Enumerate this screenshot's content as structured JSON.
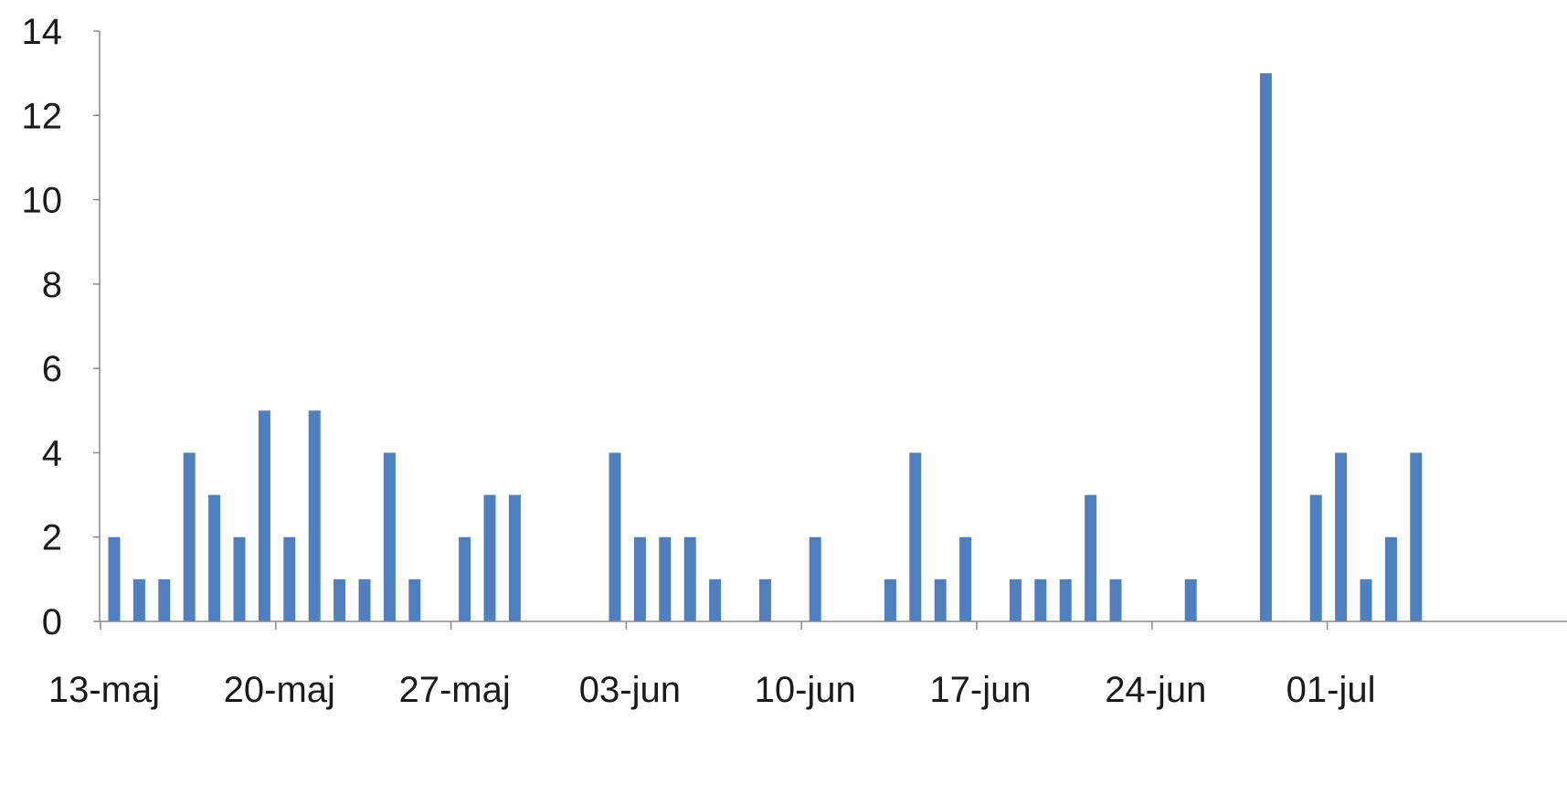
{
  "chart_data": {
    "type": "bar",
    "title": "",
    "xlabel": "",
    "ylabel": "",
    "ylim": [
      0,
      14
    ],
    "y_ticks": [
      0,
      2,
      4,
      6,
      8,
      10,
      12,
      14
    ],
    "x_range": [
      "2013-05-13",
      "2013-07-05"
    ],
    "x_tick_labels": [
      {
        "date": "2013-05-13",
        "label": "13-maj"
      },
      {
        "date": "2013-05-20",
        "label": "20-maj"
      },
      {
        "date": "2013-05-27",
        "label": "27-maj"
      },
      {
        "date": "2013-06-03",
        "label": "03-jun"
      },
      {
        "date": "2013-06-10",
        "label": "10-jun"
      },
      {
        "date": "2013-06-17",
        "label": "17-jun"
      },
      {
        "date": "2013-06-24",
        "label": "24-jun"
      },
      {
        "date": "2013-07-01",
        "label": "01-jul"
      }
    ],
    "x": [
      "2013-05-13",
      "2013-05-14",
      "2013-05-15",
      "2013-05-16",
      "2013-05-17",
      "2013-05-18",
      "2013-05-19",
      "2013-05-20",
      "2013-05-21",
      "2013-05-22",
      "2013-05-23",
      "2013-05-24",
      "2013-05-25",
      "2013-05-27",
      "2013-05-28",
      "2013-05-29",
      "2013-06-02",
      "2013-06-03",
      "2013-06-04",
      "2013-06-05",
      "2013-06-06",
      "2013-06-08",
      "2013-06-10",
      "2013-06-13",
      "2013-06-14",
      "2013-06-15",
      "2013-06-16",
      "2013-06-18",
      "2013-06-19",
      "2013-06-20",
      "2013-06-21",
      "2013-06-22",
      "2013-06-25",
      "2013-06-28",
      "2013-06-30",
      "2013-07-01",
      "2013-07-02",
      "2013-07-03",
      "2013-07-04"
    ],
    "values": [
      2,
      1,
      1,
      4,
      3,
      2,
      5,
      2,
      5,
      1,
      1,
      4,
      1,
      2,
      3,
      3,
      4,
      2,
      2,
      2,
      1,
      1,
      2,
      1,
      4,
      1,
      2,
      1,
      1,
      1,
      3,
      1,
      1,
      13,
      3,
      4,
      1,
      2,
      4
    ],
    "bar_color": "#4f7fbf",
    "grid": false,
    "legend": "none"
  }
}
